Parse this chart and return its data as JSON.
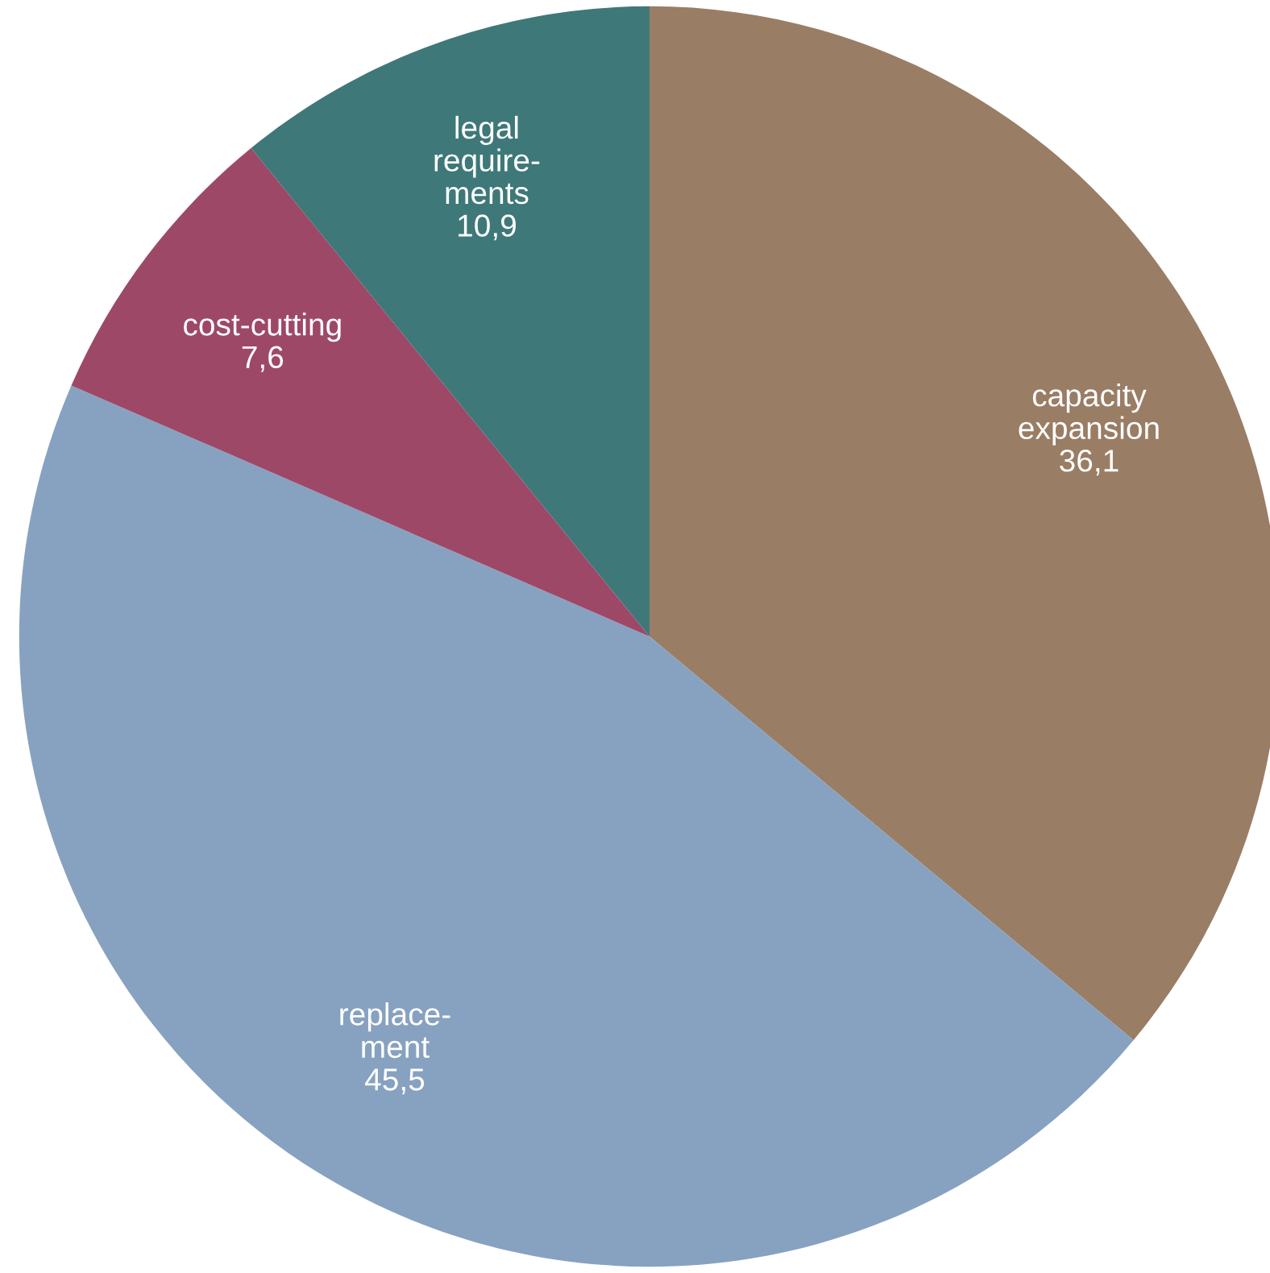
{
  "chart_data": {
    "type": "pie",
    "categories": [
      "capacity\nexpansion",
      "replace-\nment",
      "cost-cutting",
      "legal\nrequire-\nments"
    ],
    "values": [
      36.1,
      45.5,
      7.6,
      10.9
    ],
    "value_labels": [
      "36,1",
      "45,5",
      "7,6",
      "10,9"
    ],
    "colors": [
      "#9a7d65",
      "#87a2c0",
      "#9e4868",
      "#3f7878"
    ]
  }
}
